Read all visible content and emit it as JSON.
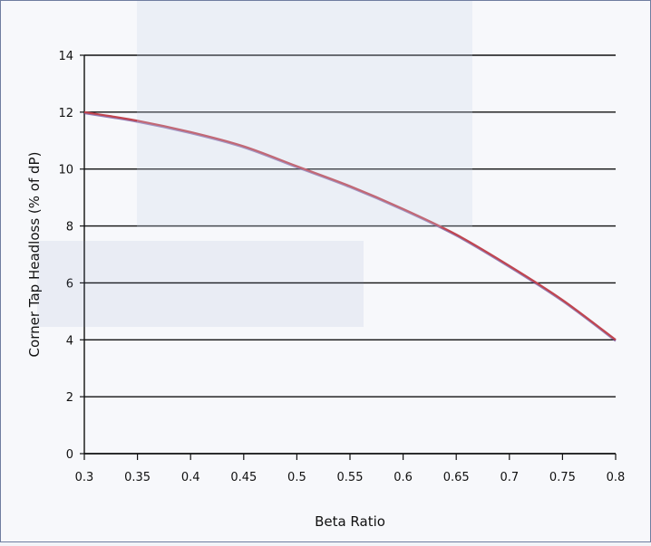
{
  "colors": {
    "line": "#c0454f",
    "line_shadow": "#6a4a98",
    "grid": "#111111",
    "background": "#f7f8fb",
    "border": "#6f7da0"
  },
  "chart_data": {
    "type": "line",
    "xlabel": "Beta Ratio",
    "ylabel": "Corner Tap Headloss (% of dP)",
    "xlim": [
      0.3,
      0.8
    ],
    "ylim": [
      0,
      14
    ],
    "x_ticks": [
      0.3,
      0.35,
      0.4,
      0.45,
      0.5,
      0.55,
      0.6,
      0.65,
      0.7,
      0.75,
      0.8
    ],
    "y_ticks": [
      0,
      2,
      4,
      6,
      8,
      10,
      12,
      14
    ],
    "x_tick_labels": [
      "0.3",
      "0.35",
      "0.4",
      "0.45",
      "0.5",
      "0.55",
      "0.6",
      "0.65",
      "0.7",
      "0.75",
      "0.8"
    ],
    "y_tick_labels": [
      "0",
      "2",
      "4",
      "6",
      "8",
      "10",
      "12",
      "14"
    ],
    "grid": "horizontal",
    "series": [
      {
        "x": [
          0.3,
          0.35,
          0.4,
          0.45,
          0.5,
          0.55,
          0.6,
          0.65,
          0.7,
          0.75,
          0.8
        ],
        "y": [
          12.0,
          11.7,
          11.3,
          10.8,
          10.1,
          9.4,
          8.6,
          7.7,
          6.6,
          5.4,
          4.0
        ]
      }
    ]
  }
}
